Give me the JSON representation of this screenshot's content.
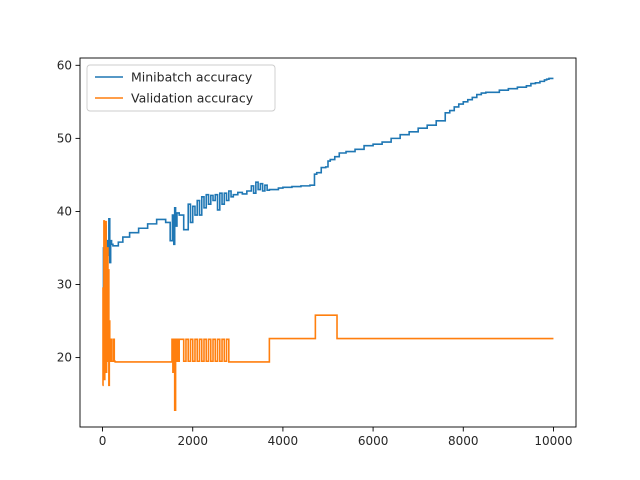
{
  "chart_data": {
    "type": "line",
    "title": "",
    "xlabel": "",
    "ylabel": "",
    "xlim": [
      -500,
      10500
    ],
    "ylim": [
      10.5,
      61
    ],
    "xticks": [
      0,
      2000,
      4000,
      6000,
      8000,
      10000
    ],
    "yticks": [
      20,
      30,
      40,
      50,
      60
    ],
    "grid": false,
    "legend_position": "top-left",
    "series": [
      {
        "name": "Minibatch accuracy",
        "color": "#1f77b4",
        "x": [
          0,
          20,
          40,
          60,
          80,
          100,
          120,
          140,
          160,
          180,
          200,
          230,
          280,
          350,
          450,
          600,
          800,
          1000,
          1200,
          1400,
          1500,
          1550,
          1580,
          1600,
          1620,
          1650,
          1700,
          1800,
          1900,
          1950,
          2000,
          2050,
          2100,
          2150,
          2200,
          2250,
          2300,
          2350,
          2400,
          2450,
          2500,
          2550,
          2600,
          2650,
          2700,
          2750,
          2800,
          2850,
          2900,
          3000,
          3100,
          3200,
          3300,
          3350,
          3400,
          3450,
          3500,
          3550,
          3600,
          3650,
          3700,
          3800,
          3900,
          4000,
          4200,
          4400,
          4600,
          4700,
          4750,
          4850,
          4950,
          5000,
          5050,
          5150,
          5250,
          5400,
          5600,
          5800,
          6000,
          6200,
          6400,
          6600,
          6800,
          7000,
          7200,
          7400,
          7600,
          7700,
          7800,
          7900,
          8000,
          8100,
          8200,
          8300,
          8400,
          8500,
          8600,
          8700,
          8800,
          9000,
          9200,
          9400,
          9500,
          9600,
          9700,
          9800,
          9850,
          9900,
          10000
        ],
        "y": [
          29.5,
          35,
          31,
          38,
          33,
          36,
          34,
          39,
          33,
          36,
          35.5,
          35.3,
          35.3,
          35.8,
          36.5,
          37.1,
          37.7,
          38.3,
          38.9,
          38.5,
          36,
          39.5,
          35.5,
          40.5,
          38,
          39.8,
          39.5,
          37.5,
          41,
          38.5,
          40.7,
          39.5,
          41.5,
          39.5,
          42,
          40.5,
          42.3,
          41,
          42.2,
          41.5,
          42.3,
          40.2,
          42.5,
          41,
          42.5,
          41.5,
          42.8,
          42,
          42.3,
          42.6,
          42.4,
          42.8,
          43.5,
          42.5,
          44,
          43,
          43.8,
          42.8,
          43.6,
          42.9,
          43,
          43,
          43.2,
          43.3,
          43.4,
          43.5,
          43.6,
          45.1,
          45.3,
          46,
          46.1,
          46.9,
          47.1,
          47.5,
          48,
          48.2,
          48.5,
          49,
          49.2,
          49.5,
          50,
          50.5,
          50.9,
          51.4,
          51.8,
          52.4,
          53.5,
          53.8,
          54.3,
          54.7,
          55,
          55.3,
          55.6,
          56,
          56.2,
          56.3,
          56.3,
          56.3,
          56.6,
          56.8,
          57,
          57.2,
          57.5,
          57.6,
          57.8,
          58,
          58.1,
          58.2,
          58.2
        ],
        "step": true
      },
      {
        "name": "Validation accuracy",
        "color": "#ff7f0e",
        "x": [
          0,
          10,
          20,
          30,
          40,
          50,
          60,
          70,
          80,
          90,
          100,
          110,
          120,
          130,
          140,
          150,
          160,
          180,
          200,
          220,
          240,
          260,
          280,
          300,
          500,
          1000,
          1500,
          1540,
          1560,
          1580,
          1600,
          1620,
          1640,
          1660,
          1680,
          1700,
          1800,
          1850,
          1900,
          1950,
          2000,
          2050,
          2100,
          2150,
          2200,
          2250,
          2300,
          2350,
          2400,
          2450,
          2500,
          2550,
          2600,
          2650,
          2700,
          2750,
          2800,
          3000,
          3500,
          3700,
          4000,
          4500,
          4720,
          4750,
          5000,
          5200,
          5300,
          6000,
          8000,
          10000
        ],
        "y": [
          16.2,
          29.5,
          22,
          38.7,
          17,
          30,
          20,
          38.6,
          18,
          27,
          22.5,
          35,
          19.5,
          32,
          16.2,
          25,
          19.5,
          22.5,
          19.5,
          19.5,
          22.5,
          19.5,
          19.4,
          19.4,
          19.4,
          19.4,
          19.4,
          22.5,
          18,
          22.5,
          12.8,
          22.5,
          19.5,
          22.5,
          19.5,
          22.5,
          19.5,
          22.5,
          19.5,
          22.5,
          19.5,
          22.5,
          19.5,
          22.5,
          19.5,
          22.5,
          19.5,
          22.5,
          19.5,
          22.5,
          19.5,
          22.5,
          19.5,
          22.5,
          19.5,
          22.5,
          19.4,
          19.4,
          19.4,
          22.6,
          22.6,
          22.6,
          25.8,
          25.8,
          25.8,
          22.6,
          22.6,
          22.6,
          22.6,
          22.6
        ],
        "step": true
      }
    ]
  }
}
